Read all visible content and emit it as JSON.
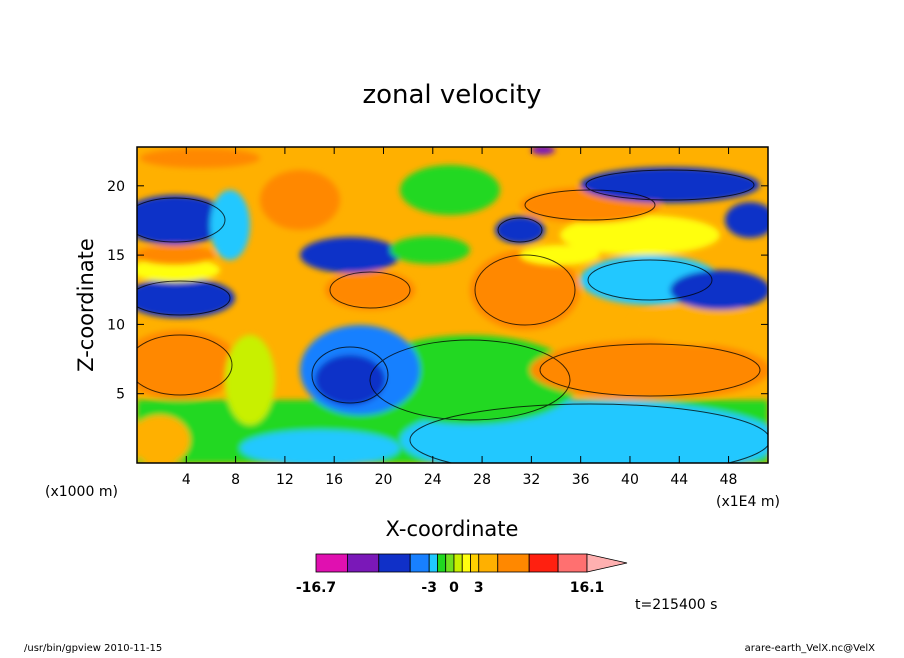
{
  "chart_data": {
    "type": "heatmap",
    "title": "zonal velocity",
    "xlabel": "X-coordinate",
    "ylabel": "Z-coordinate",
    "x_unit": "(x1E4 m)",
    "y_unit": "(x1000 m)",
    "x_ticks": [
      "4",
      "8",
      "12",
      "16",
      "20",
      "24",
      "28",
      "32",
      "36",
      "40",
      "44",
      "48"
    ],
    "x_tick_values": [
      4,
      8,
      12,
      16,
      20,
      24,
      28,
      32,
      36,
      40,
      44,
      48
    ],
    "y_ticks": [
      "5",
      "10",
      "15",
      "20"
    ],
    "y_tick_values": [
      5,
      10,
      15,
      20
    ],
    "xlim": [
      0,
      51.2
    ],
    "ylim": [
      0,
      22.8
    ],
    "grid": false,
    "time_label": "t=215400 s",
    "colorbar": {
      "min_label": "-16.7",
      "max_label": "16.1",
      "tick_labels": [
        "-3",
        "0",
        "3"
      ],
      "min": -16.7,
      "max": 16.1,
      "levels": [
        -16.7,
        -12.9,
        -9.1,
        -5.3,
        -3,
        -2,
        -1,
        0,
        1,
        2,
        3,
        5.3,
        9.1,
        12.6,
        16.1
      ],
      "colors": [
        "#e010b0",
        "#7a18b8",
        "#1030c8",
        "#1880ff",
        "#20c8ff",
        "#20d820",
        "#70e020",
        "#c8f000",
        "#ffff10",
        "#ffd000",
        "#ffb000",
        "#ff8800",
        "#ff2010",
        "#ff7070",
        "#ffb0b0"
      ]
    }
  },
  "footer": {
    "left": "/usr/bin/gpview   2010-11-15",
    "right": "arare-earth_VelX.nc@VelX"
  }
}
